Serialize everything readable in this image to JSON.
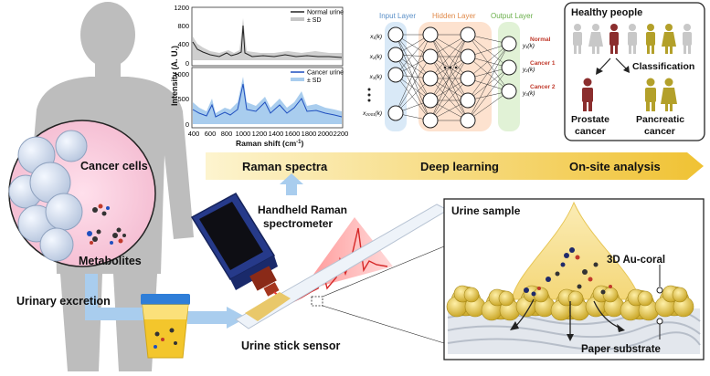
{
  "left": {
    "cancer_cells": "Cancer cells",
    "metabolites": "Metabolites",
    "urinary_excretion": "Urinary excretion",
    "urine_stick_sensor": "Urine stick sensor"
  },
  "spectra": {
    "y_label": "Intensity (A. U.)",
    "x_label": "Raman shift (cm",
    "x_label_sup": "-1",
    "x_label_end": ")",
    "top_ticks_y": [
      "1200",
      "800",
      "400",
      "0"
    ],
    "bottom_ticks_y": [
      "1000",
      "500",
      "0"
    ],
    "ticks_x": [
      "400",
      "600",
      "800",
      "1000",
      "1200",
      "1400",
      "1600",
      "1800",
      "2000",
      "2200"
    ],
    "legend_top": [
      "Normal urine",
      "± SD"
    ],
    "legend_bottom": [
      "Cancer urine",
      "± SD"
    ]
  },
  "network": {
    "input_layer": "Input Layer",
    "hidden_layer": "Hidden Layer",
    "output_layer": "Output Layer",
    "inputs": [
      "x₁(k)",
      "x₂(k)",
      "x₃(k)",
      "x₂₀₀₁(k)"
    ],
    "outputs": [
      "y₁(k)",
      "y₂(k)",
      "y₃(k)"
    ],
    "output_classes": [
      "Normal",
      "Cancer 1",
      "Cancer 2"
    ]
  },
  "healthy_box": {
    "title": "Healthy people",
    "classification": "Classification",
    "prostate": [
      "Prostate",
      "cancer"
    ],
    "pancreatic": [
      "Pancreatic",
      "cancer"
    ]
  },
  "pipeline": {
    "step1": "Raman spectra",
    "step2": "Deep learning",
    "step3": "On-site analysis"
  },
  "spectrometer": {
    "line1": "Handheld Raman",
    "line2": "spectrometer"
  },
  "urine_sample_box": {
    "title": "Urine sample",
    "au_coral": "3D Au-coral",
    "paper": "Paper substrate"
  },
  "colors": {
    "pipeline_arrow": "#f2c94c",
    "blue_flow": "#a9cdee",
    "coral_gold": "#d9b93a",
    "cancer_red": "#c0392b",
    "spectrum_blue": "#1f4fbf"
  }
}
